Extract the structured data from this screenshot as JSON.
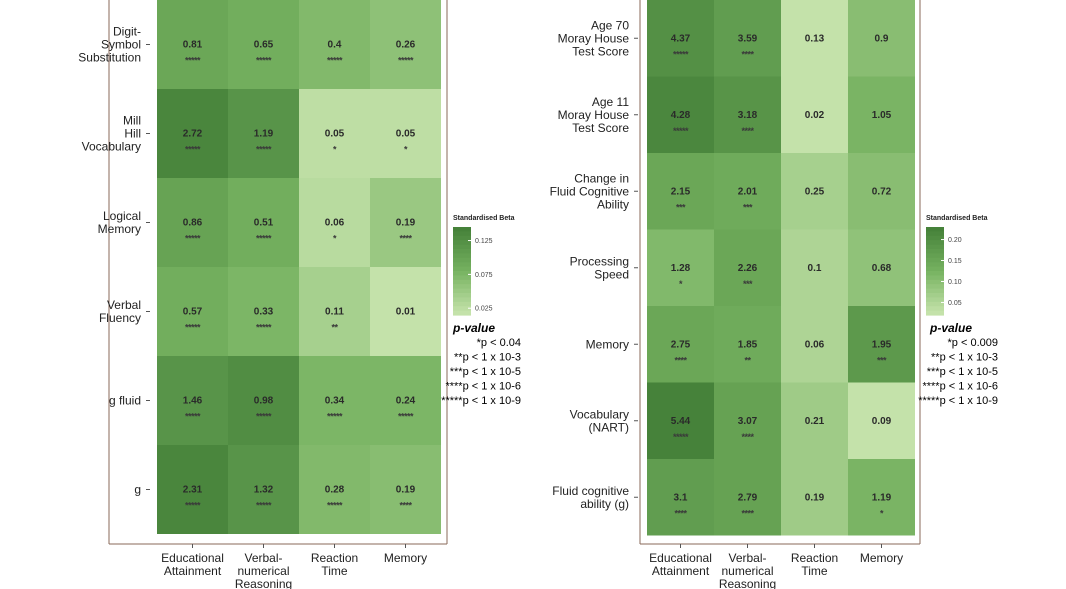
{
  "chart_data": [
    {
      "type": "heatmap",
      "title": "",
      "rows": [
        "Digit-\nSymbol\nSubstitution",
        "Mill\nHill\nVocabulary",
        "Logical\nMemory",
        "Verbal\nFluency",
        "g fluid",
        "g"
      ],
      "columns": [
        "Educational\nAttainment",
        "Verbal-\nnumerical\nReasoning",
        "Reaction\nTime",
        "Memory"
      ],
      "values": [
        [
          0.81,
          0.65,
          0.4,
          0.26
        ],
        [
          2.72,
          1.19,
          0.05,
          0.05
        ],
        [
          0.86,
          0.51,
          0.06,
          0.19
        ],
        [
          0.57,
          0.33,
          0.11,
          0.01
        ],
        [
          1.46,
          0.98,
          0.34,
          0.24
        ],
        [
          2.31,
          1.32,
          0.28,
          0.19
        ]
      ],
      "value_labels": [
        [
          "0.81",
          "0.65",
          "0.4",
          "0.26"
        ],
        [
          "2.72",
          "1.19",
          "0.05",
          "0.05"
        ],
        [
          "0.86",
          "0.51",
          "0.06",
          "0.19"
        ],
        [
          "0.57",
          "0.33",
          "0.11",
          "0.01"
        ],
        [
          "1.46",
          "0.98",
          "0.34",
          "0.24"
        ],
        [
          "2.31",
          "1.32",
          "0.28",
          "0.19"
        ]
      ],
      "stars": [
        [
          "*****",
          "*****",
          "*****",
          "*****"
        ],
        [
          "*****",
          "*****",
          "*",
          "*"
        ],
        [
          "*****",
          "*****",
          "*",
          "****"
        ],
        [
          "*****",
          "*****",
          "**",
          ""
        ],
        [
          "*****",
          "*****",
          "*****",
          "*****"
        ],
        [
          "*****",
          "*****",
          "*****",
          "****"
        ]
      ],
      "standardised_beta": [
        [
          0.095,
          0.085,
          0.07,
          0.06
        ],
        [
          0.14,
          0.12,
          0.02,
          0.02
        ],
        [
          0.1,
          0.085,
          0.025,
          0.05
        ],
        [
          0.085,
          0.075,
          0.04,
          0.015
        ],
        [
          0.12,
          0.13,
          0.075,
          0.075
        ],
        [
          0.14,
          0.12,
          0.07,
          0.065
        ]
      ],
      "legend": {
        "title": "Standardised Beta",
        "ticks": [
          "0.125",
          "0.075",
          "0.025"
        ],
        "tick_values": [
          0.125,
          0.075,
          0.025
        ],
        "range": [
          0.015,
          0.145
        ],
        "pvalue_title": "p-value",
        "pvalue_lines": [
          "*p < 0.04",
          "**p < 1 x 10-3",
          "***p < 1 x 10-5",
          "****p < 1 x 10-6",
          "*****p < 1 x 10-9"
        ]
      }
    },
    {
      "type": "heatmap",
      "title": "",
      "rows": [
        "Age 70\nMoray House\nTest Score",
        "Age 11\nMoray House\nTest Score",
        "Change in\nFluid Cognitive\nAbility",
        "Processing\nSpeed",
        "Memory",
        "Vocabulary\n(NART)",
        "Fluid cognitive\nability (g)"
      ],
      "columns": [
        "Educational\nAttainment",
        "Verbal-\nnumerical\nReasoning",
        "Reaction\nTime",
        "Memory"
      ],
      "values": [
        [
          4.37,
          3.59,
          0.13,
          0.9
        ],
        [
          4.28,
          3.18,
          0.02,
          1.05
        ],
        [
          2.15,
          2.01,
          0.25,
          0.72
        ],
        [
          1.28,
          2.26,
          0.1,
          0.68
        ],
        [
          2.75,
          1.85,
          0.06,
          1.95
        ],
        [
          5.44,
          3.07,
          0.21,
          0.09
        ],
        [
          3.1,
          2.79,
          0.19,
          1.19
        ]
      ],
      "value_labels": [
        [
          "4.37",
          "3.59",
          "0.13",
          "0.9"
        ],
        [
          "4.28",
          "3.18",
          "0.02",
          "1.05"
        ],
        [
          "2.15",
          "2.01",
          "0.25",
          "0.72"
        ],
        [
          "1.28",
          "2.26",
          "0.1",
          "0.68"
        ],
        [
          "2.75",
          "1.85",
          "0.06",
          "1.95"
        ],
        [
          "5.44",
          "3.07",
          "0.21",
          "0.09"
        ],
        [
          "3.1",
          "2.79",
          "0.19",
          "1.19"
        ]
      ],
      "stars": [
        [
          "*****",
          "****",
          "",
          ""
        ],
        [
          "*****",
          "****",
          "",
          ""
        ],
        [
          "***",
          "***",
          "",
          ""
        ],
        [
          "*",
          "***",
          "",
          ""
        ],
        [
          "****",
          "**",
          "",
          "***"
        ],
        [
          "*****",
          "****",
          "",
          ""
        ],
        [
          "****",
          "****",
          "",
          "*"
        ]
      ],
      "standardised_beta": [
        [
          0.2,
          0.17,
          0.02,
          0.1
        ],
        [
          0.22,
          0.19,
          0.01,
          0.12
        ],
        [
          0.15,
          0.14,
          0.06,
          0.1
        ],
        [
          0.11,
          0.15,
          0.05,
          0.09
        ],
        [
          0.15,
          0.14,
          0.05,
          0.18
        ],
        [
          0.23,
          0.16,
          0.07,
          0.02
        ],
        [
          0.17,
          0.16,
          0.07,
          0.12
        ]
      ],
      "legend": {
        "title": "Standardised Beta",
        "ticks": [
          "0.20",
          "0.15",
          "0.10",
          "0.05"
        ],
        "tick_values": [
          0.2,
          0.15,
          0.1,
          0.05
        ],
        "range": [
          0.02,
          0.23
        ],
        "pvalue_title": "p-value",
        "pvalue_lines": [
          "*p < 0.009",
          "**p < 1 x 10-3",
          "***p < 1 x 10-5",
          "****p < 1 x 10-6",
          "*****p < 1 x 10-9"
        ]
      }
    }
  ]
}
